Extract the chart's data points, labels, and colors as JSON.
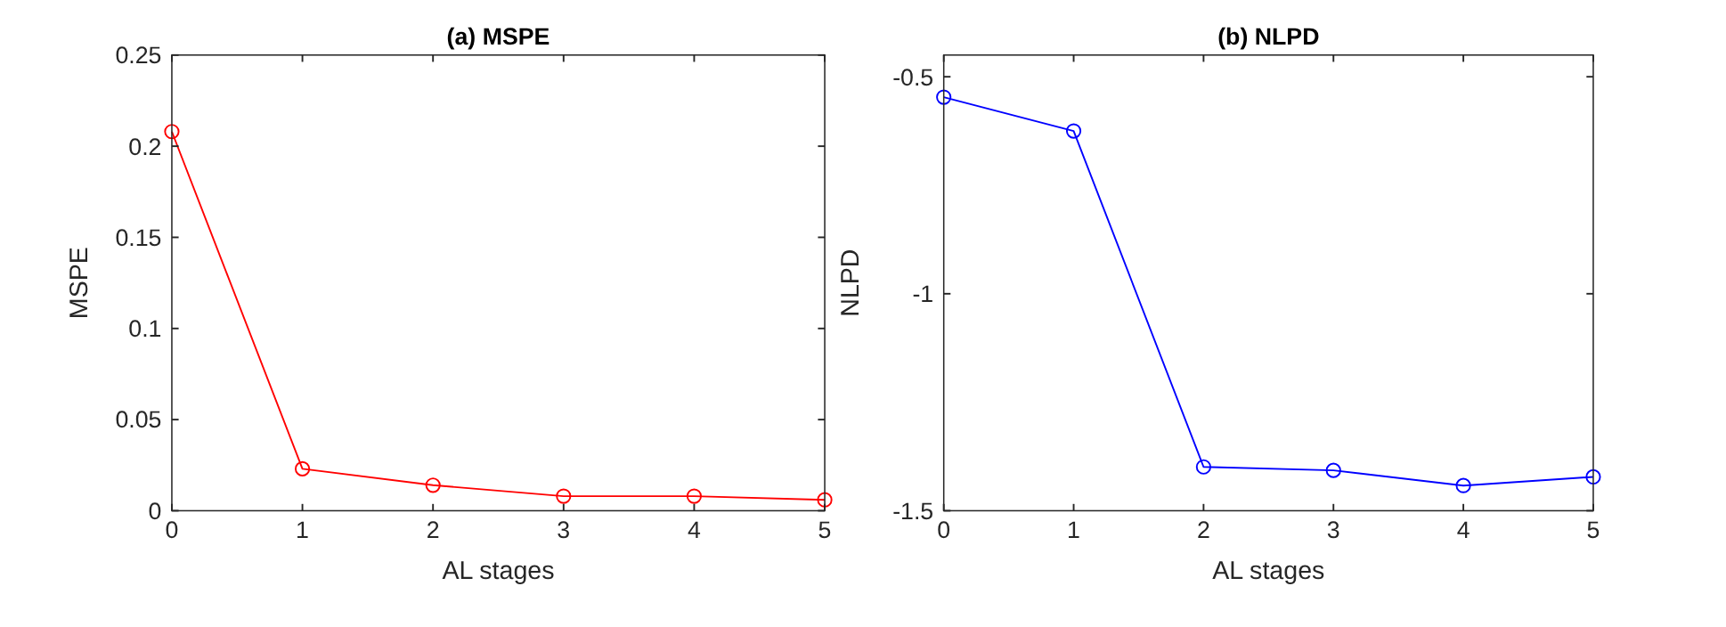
{
  "chart_data": [
    {
      "type": "line",
      "title": "(a) MSPE",
      "xlabel": "AL stages",
      "ylabel": "MSPE",
      "x": [
        0,
        1,
        2,
        3,
        4,
        5
      ],
      "xlim": [
        0,
        5
      ],
      "xticks": [
        0,
        1,
        2,
        3,
        4,
        5
      ],
      "ylim": [
        0,
        0.25
      ],
      "yticks": [
        0,
        0.05,
        0.1,
        0.15,
        0.2,
        0.25
      ],
      "marker": "circle",
      "series": [
        {
          "color": "#ff0000",
          "values": [
            0.208,
            0.023,
            0.014,
            0.008,
            0.008,
            0.006
          ]
        }
      ]
    },
    {
      "type": "line",
      "title": "(b) NLPD",
      "xlabel": "AL stages",
      "ylabel": "NLPD",
      "x": [
        0,
        1,
        2,
        3,
        4,
        5
      ],
      "xlim": [
        0,
        5
      ],
      "xticks": [
        0,
        1,
        2,
        3,
        4,
        5
      ],
      "ylim": [
        -1.5,
        -0.45
      ],
      "yticks": [
        -1.5,
        -1,
        -0.5
      ],
      "marker": "circle",
      "series": [
        {
          "color": "#0000ff",
          "values": [
            -0.547,
            -0.625,
            -1.399,
            -1.407,
            -1.442,
            -1.422
          ]
        }
      ]
    }
  ]
}
